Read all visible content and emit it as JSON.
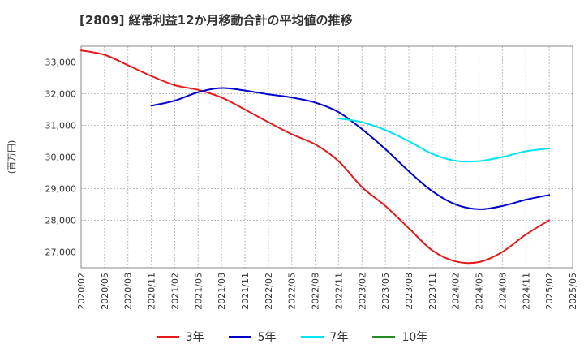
{
  "title": "[2809]  経常利益12か月移動合計の平均値の推移",
  "chart_data": {
    "type": "line",
    "title": "[2809]  経常利益12か月移動合計の平均値の推移",
    "ylabel": "(百万円)",
    "xlabel": "",
    "x_ticks": [
      "2020/02",
      "2020/05",
      "2020/08",
      "2020/11",
      "2021/02",
      "2021/05",
      "2021/08",
      "2021/11",
      "2022/02",
      "2022/05",
      "2022/08",
      "2022/11",
      "2023/02",
      "2023/05",
      "2023/08",
      "2023/11",
      "2024/02",
      "2024/05",
      "2024/08",
      "2024/11",
      "2025/02",
      "2025/05"
    ],
    "y_ticks": [
      27000,
      28000,
      29000,
      30000,
      31000,
      32000,
      33000
    ],
    "y_tick_labels": [
      "27,000",
      "28,000",
      "29,000",
      "30,000",
      "31,000",
      "32,000",
      "33,000"
    ],
    "ylim": [
      26500,
      33500
    ],
    "grid": true,
    "legend_position": "bottom",
    "series": [
      {
        "name": "3年",
        "color": "#e41a1c",
        "points": [
          [
            "2020/02",
            33370
          ],
          [
            "2020/05",
            33230
          ],
          [
            "2020/08",
            32900
          ],
          [
            "2020/11",
            32560
          ],
          [
            "2021/02",
            32270
          ],
          [
            "2021/05",
            32120
          ],
          [
            "2021/08",
            31880
          ],
          [
            "2021/11",
            31500
          ],
          [
            "2022/02",
            31100
          ],
          [
            "2022/05",
            30720
          ],
          [
            "2022/08",
            30400
          ],
          [
            "2022/11",
            29870
          ],
          [
            "2023/02",
            29050
          ],
          [
            "2023/05",
            28450
          ],
          [
            "2023/08",
            27750
          ],
          [
            "2023/11",
            27050
          ],
          [
            "2024/02",
            26700
          ],
          [
            "2024/05",
            26680
          ],
          [
            "2024/08",
            27000
          ],
          [
            "2024/11",
            27550
          ],
          [
            "2025/02",
            28000
          ]
        ]
      },
      {
        "name": "5年",
        "color": "#0000cd",
        "points": [
          [
            "2020/11",
            31620
          ],
          [
            "2021/02",
            31780
          ],
          [
            "2021/05",
            32050
          ],
          [
            "2021/08",
            32180
          ],
          [
            "2021/11",
            32100
          ],
          [
            "2022/02",
            31980
          ],
          [
            "2022/05",
            31880
          ],
          [
            "2022/08",
            31720
          ],
          [
            "2022/11",
            31420
          ],
          [
            "2023/02",
            30880
          ],
          [
            "2023/05",
            30250
          ],
          [
            "2023/08",
            29550
          ],
          [
            "2023/11",
            28920
          ],
          [
            "2024/02",
            28500
          ],
          [
            "2024/05",
            28350
          ],
          [
            "2024/08",
            28450
          ],
          [
            "2024/11",
            28650
          ],
          [
            "2025/02",
            28800
          ]
        ]
      },
      {
        "name": "7年",
        "color": "#00e5ee",
        "points": [
          [
            "2022/11",
            31220
          ],
          [
            "2023/02",
            31100
          ],
          [
            "2023/05",
            30850
          ],
          [
            "2023/08",
            30500
          ],
          [
            "2023/11",
            30100
          ],
          [
            "2024/02",
            29880
          ],
          [
            "2024/05",
            29870
          ],
          [
            "2024/08",
            30000
          ],
          [
            "2024/11",
            30180
          ],
          [
            "2025/02",
            30270
          ]
        ]
      },
      {
        "name": "10年",
        "color": "#228b22",
        "points": []
      }
    ]
  }
}
